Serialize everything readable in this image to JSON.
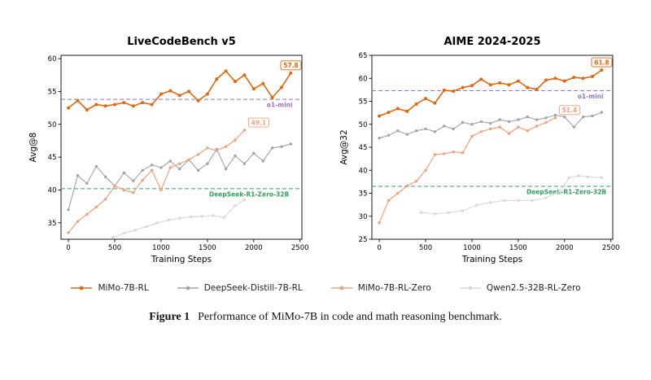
{
  "figure": {
    "caption_label": "Figure 1",
    "caption_text": "Performance of MiMo-7B in code and math reasoning benchmark."
  },
  "legend": [
    {
      "label": "MiMo-7B-RL",
      "color": "#e2670f"
    },
    {
      "label": "DeepSeek-Distill-7B-RL",
      "color": "#a3a3a3"
    },
    {
      "label": "MiMo-7B-RL-Zero",
      "color": "#f2a07a"
    },
    {
      "label": "Qwen2.5-32B-RL-Zero",
      "color": "#d8d8d8"
    }
  ],
  "chart_data": [
    {
      "type": "line",
      "title": "LiveCodeBench v5",
      "xlabel": "Training Steps",
      "ylabel": "Avg@8",
      "xlim": [
        -80,
        2520
      ],
      "ylim": [
        32.5,
        60.5
      ],
      "xticks": [
        0,
        500,
        1000,
        1500,
        2000,
        2500
      ],
      "yticks": [
        35,
        40,
        45,
        50,
        55,
        60
      ],
      "grid": false,
      "baselines": [
        {
          "label": "o1-mini",
          "value": 53.8,
          "color": "#9573c9",
          "label_x": 2280
        },
        {
          "label": "DeepSeek-R1-Zero-32B",
          "value": 40.2,
          "color": "#33a060",
          "label_x": 1950
        }
      ],
      "series": [
        {
          "name": "MiMo-7B-RL",
          "color": "#e2670f",
          "width": 1.6,
          "r": 2.0,
          "end_label": "57.8",
          "x": [
            0,
            100,
            200,
            300,
            400,
            500,
            600,
            700,
            800,
            900,
            1000,
            1100,
            1200,
            1300,
            1400,
            1500,
            1600,
            1700,
            1800,
            1900,
            2000,
            2100,
            2200,
            2300,
            2400
          ],
          "y": [
            52.5,
            53.6,
            52.2,
            53.0,
            52.8,
            53.0,
            53.3,
            52.8,
            53.3,
            53.0,
            54.6,
            55.1,
            54.4,
            55.0,
            53.6,
            54.6,
            56.9,
            58.1,
            56.5,
            57.5,
            55.4,
            56.2,
            54.1,
            55.6,
            57.8
          ]
        },
        {
          "name": "DeepSeek-Distill-7B-RL",
          "color": "#a3a3a3",
          "width": 1.1,
          "r": 1.7,
          "x": [
            0,
            100,
            200,
            300,
            400,
            500,
            600,
            700,
            800,
            900,
            1000,
            1100,
            1200,
            1300,
            1400,
            1500,
            1600,
            1700,
            1800,
            1900,
            2000,
            2100,
            2200,
            2300,
            2400
          ],
          "y": [
            37.0,
            42.2,
            41.0,
            43.6,
            42.0,
            40.6,
            42.6,
            41.4,
            43.0,
            43.8,
            43.4,
            44.4,
            43.2,
            44.6,
            43.0,
            44.0,
            46.2,
            43.2,
            45.2,
            44.0,
            45.6,
            44.4,
            46.4,
            46.6,
            47.0
          ]
        },
        {
          "name": "MiMo-7B-RL-Zero",
          "color": "#f2a07a",
          "width": 1.2,
          "r": 1.7,
          "end_label": "49.1",
          "x": [
            0,
            100,
            200,
            300,
            400,
            500,
            600,
            700,
            800,
            900,
            1000,
            1100,
            1200,
            1300,
            1400,
            1500,
            1600,
            1700,
            1800,
            1900
          ],
          "y": [
            33.5,
            35.2,
            36.3,
            37.4,
            38.6,
            40.6,
            40.0,
            39.6,
            41.5,
            43.0,
            40.0,
            43.4,
            44.0,
            44.6,
            45.4,
            46.4,
            46.0,
            46.6,
            47.6,
            49.1
          ]
        },
        {
          "name": "Qwen2.5-32B-RL-Zero",
          "color": "#d8d8d8",
          "width": 1.1,
          "r": 1.7,
          "x": [
            480,
            600,
            720,
            840,
            960,
            1080,
            1200,
            1320,
            1440,
            1560,
            1680,
            1800,
            1900
          ],
          "y": [
            32.8,
            33.4,
            33.9,
            34.4,
            35.0,
            35.4,
            35.7,
            35.9,
            36.0,
            36.1,
            35.8,
            37.6,
            38.5
          ]
        }
      ]
    },
    {
      "type": "line",
      "title": "AIME 2024-2025",
      "xlabel": "Training Steps",
      "ylabel": "Avg@32",
      "xlim": [
        -80,
        2520
      ],
      "ylim": [
        25,
        65
      ],
      "xticks": [
        0,
        500,
        1000,
        1500,
        2000,
        2500
      ],
      "yticks": [
        25,
        30,
        35,
        40,
        45,
        50,
        55,
        60,
        65
      ],
      "grid": false,
      "baselines": [
        {
          "label": "o1-mini",
          "value": 57.3,
          "color": "#9573c9",
          "label_x": 2280
        },
        {
          "label": "DeepSeek-R1-Zero-32B",
          "value": 36.5,
          "color": "#33a060",
          "label_x": 2020
        }
      ],
      "series": [
        {
          "name": "MiMo-7B-RL",
          "color": "#e2670f",
          "width": 1.6,
          "r": 2.0,
          "end_label": "61.8",
          "x": [
            0,
            100,
            200,
            300,
            400,
            500,
            600,
            700,
            800,
            900,
            1000,
            1100,
            1200,
            1300,
            1400,
            1500,
            1600,
            1700,
            1800,
            1900,
            2000,
            2100,
            2200,
            2300,
            2400
          ],
          "y": [
            51.8,
            52.6,
            53.4,
            52.8,
            54.4,
            55.6,
            54.6,
            57.4,
            57.2,
            58.0,
            58.4,
            59.8,
            58.6,
            59.0,
            58.6,
            59.4,
            58.0,
            57.6,
            59.6,
            60.0,
            59.4,
            60.2,
            60.0,
            60.4,
            61.8
          ]
        },
        {
          "name": "DeepSeek-Distill-7B-RL",
          "color": "#a3a3a3",
          "width": 1.1,
          "r": 1.7,
          "x": [
            0,
            100,
            200,
            300,
            400,
            500,
            600,
            700,
            800,
            900,
            1000,
            1100,
            1200,
            1300,
            1400,
            1500,
            1600,
            1700,
            1800,
            1900,
            2000,
            2100,
            2200,
            2300,
            2400
          ],
          "y": [
            47.0,
            47.6,
            48.6,
            47.8,
            48.6,
            49.0,
            48.4,
            49.6,
            49.0,
            50.4,
            50.0,
            50.6,
            50.2,
            51.0,
            50.6,
            51.0,
            51.6,
            51.0,
            51.4,
            52.0,
            51.6,
            49.4,
            51.6,
            51.8,
            52.6
          ]
        },
        {
          "name": "MiMo-7B-RL-Zero",
          "color": "#f2a07a",
          "width": 1.2,
          "r": 1.7,
          "end_label": "51.4",
          "x": [
            0,
            100,
            200,
            300,
            400,
            500,
            600,
            700,
            800,
            900,
            1000,
            1100,
            1200,
            1300,
            1400,
            1500,
            1600,
            1700,
            1800,
            1900
          ],
          "y": [
            28.6,
            33.4,
            35.0,
            36.6,
            37.6,
            40.0,
            43.4,
            43.6,
            44.0,
            43.8,
            47.4,
            48.4,
            49.0,
            49.4,
            48.0,
            49.4,
            48.6,
            49.6,
            50.4,
            51.4
          ]
        },
        {
          "name": "Qwen2.5-32B-RL-Zero",
          "color": "#d8d8d8",
          "width": 1.1,
          "r": 1.7,
          "x": [
            450,
            600,
            750,
            900,
            1050,
            1200,
            1350,
            1500,
            1650,
            1800,
            1950,
            2050,
            2150,
            2250,
            2400
          ],
          "y": [
            30.8,
            30.5,
            30.8,
            31.2,
            32.4,
            33.0,
            33.4,
            33.4,
            33.4,
            34.0,
            35.4,
            38.4,
            38.8,
            38.6,
            38.4
          ]
        }
      ]
    }
  ]
}
